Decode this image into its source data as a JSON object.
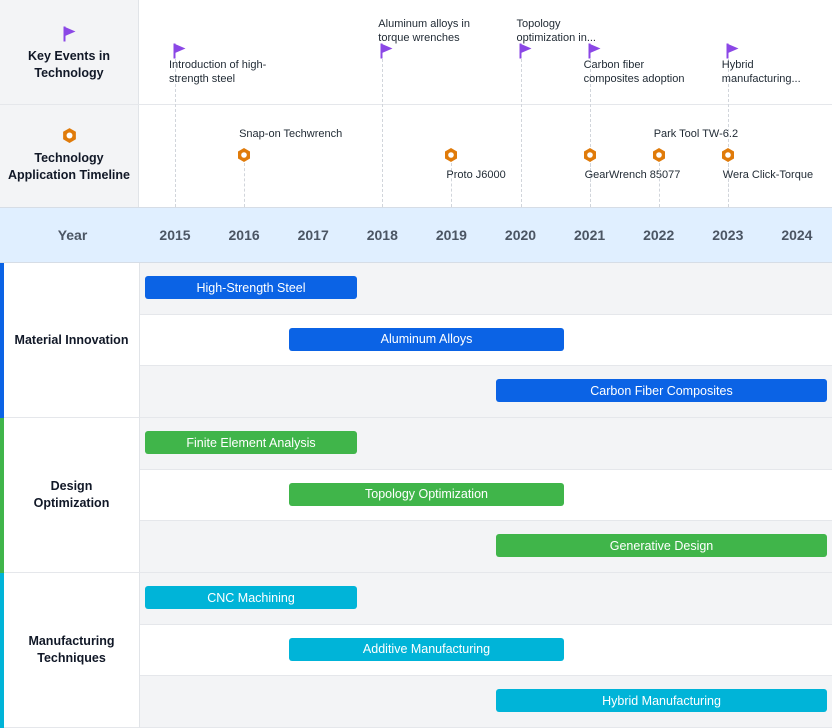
{
  "rows": {
    "events_title": "Key Events in Technology",
    "apps_title": "Technology Application Timeline",
    "year_title": "Year"
  },
  "colors": {
    "flag": "#8b47e6",
    "hex": "#e07b0a",
    "material": "#0b63e5",
    "design": "#40b54a",
    "manufacturing": "#00b4d8",
    "header_bg": "#e0efff"
  },
  "icons": {
    "event": "flag-icon",
    "application": "hexagon-icon"
  },
  "chart_data": {
    "type": "gantt-timeline",
    "years": [
      "2015",
      "2016",
      "2017",
      "2018",
      "2019",
      "2020",
      "2021",
      "2022",
      "2023",
      "2024"
    ],
    "events": [
      {
        "year": 2015,
        "label": "Introduction of high-strength steel",
        "lines": [
          "Introduction of high-",
          "strength steel"
        ],
        "level": "low"
      },
      {
        "year": 2018,
        "label": "Aluminum alloys in torque wrenches",
        "lines": [
          "Aluminum alloys in",
          "torque wrenches"
        ],
        "level": "high"
      },
      {
        "year": 2020,
        "label": "Topology optimization in...",
        "lines": [
          "Topology",
          "optimization in..."
        ],
        "level": "high"
      },
      {
        "year": 2021,
        "label": "Carbon fiber composites adoption",
        "lines": [
          "Carbon fiber",
          "composites adoption"
        ],
        "level": "low"
      },
      {
        "year": 2023,
        "label": "Hybrid manufacturing...",
        "lines": [
          "Hybrid",
          "manufacturing..."
        ],
        "level": "low"
      }
    ],
    "applications": [
      {
        "year": 2016,
        "label": "Snap-on Techwrench",
        "position": "above"
      },
      {
        "year": 2019,
        "label": "Proto J6000",
        "position": "below"
      },
      {
        "year": 2021,
        "label": "GearWrench 85077",
        "position": "below"
      },
      {
        "year": 2022,
        "label": "Park Tool TW-6.2",
        "position": "above"
      },
      {
        "year": 2023,
        "label": "Wera Click-Torque",
        "position": "below"
      }
    ],
    "categories": [
      {
        "name": "Material Innovation",
        "color_key": "material",
        "bars": [
          {
            "label": "High-Strength Steel",
            "start": 2015,
            "end": 2018
          },
          {
            "label": "Aluminum Alloys",
            "start": 2018,
            "end": 2021
          },
          {
            "label": "Carbon Fiber Composites",
            "start": 2021,
            "end": 2024
          }
        ]
      },
      {
        "name": "Design Optimization",
        "color_key": "design",
        "bars": [
          {
            "label": "Finite Element Analysis",
            "start": 2015,
            "end": 2018
          },
          {
            "label": "Topology Optimization",
            "start": 2018,
            "end": 2021
          },
          {
            "label": "Generative Design",
            "start": 2021,
            "end": 2024
          }
        ]
      },
      {
        "name": "Manufacturing Techniques",
        "color_key": "manufacturing",
        "bars": [
          {
            "label": "CNC Machining",
            "start": 2015,
            "end": 2018
          },
          {
            "label": "Additive Manufacturing",
            "start": 2018,
            "end": 2021
          },
          {
            "label": "Hybrid Manufacturing",
            "start": 2021,
            "end": 2024
          }
        ]
      }
    ]
  }
}
